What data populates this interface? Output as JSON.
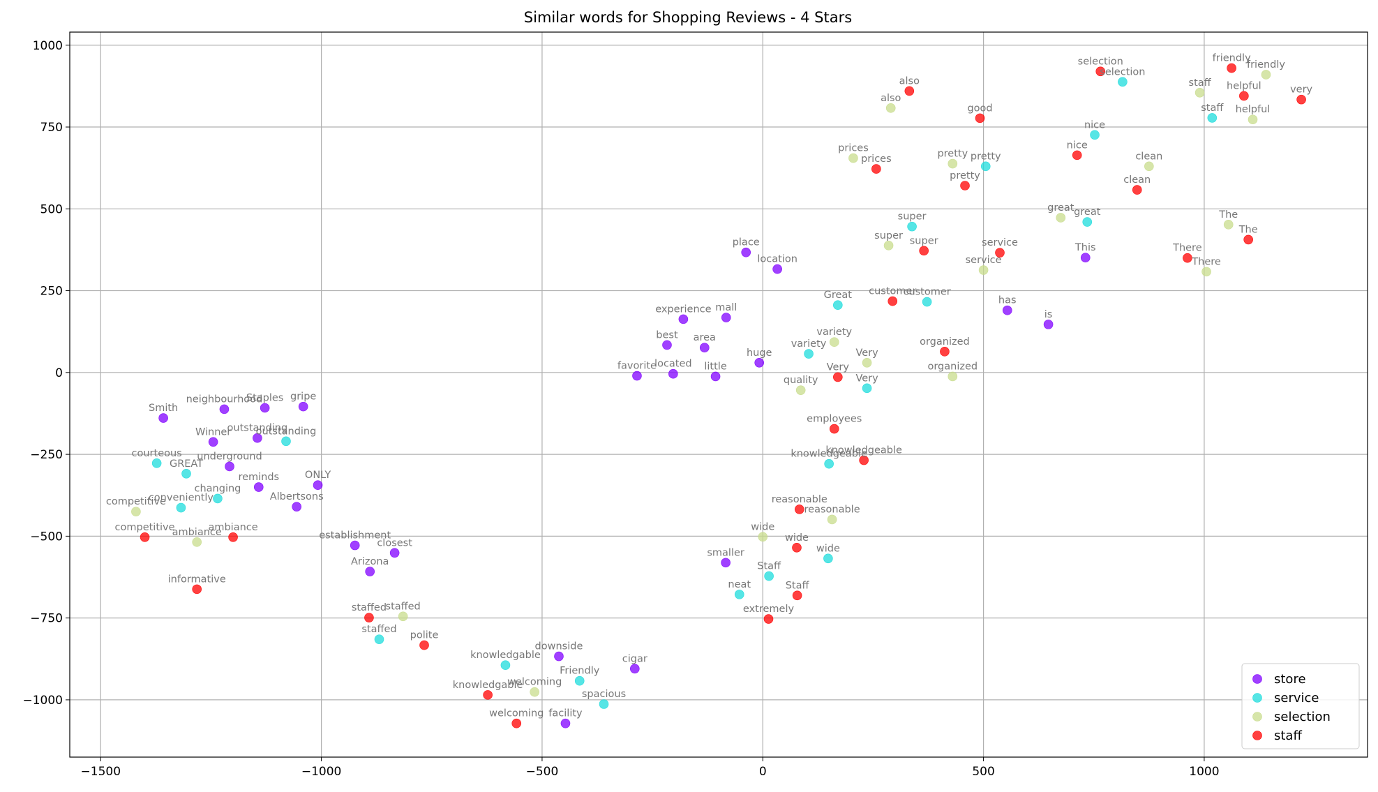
{
  "chart_data": {
    "type": "scatter",
    "title": "Similar words for Shopping Reviews - 4 Stars",
    "xlabel": "",
    "ylabel": "",
    "xlim": [
      -1570,
      1370
    ],
    "ylim": [
      -1175,
      1040
    ],
    "xticks": [
      -1500,
      -1000,
      -500,
      0,
      500,
      1000
    ],
    "yticks": [
      -1000,
      -750,
      -500,
      -250,
      0,
      250,
      500,
      750,
      1000
    ],
    "tick_labels_x": [
      "−1500",
      "−1000",
      "−500",
      "0",
      "500",
      "1000"
    ],
    "tick_labels_y": [
      "−1000",
      "−750",
      "−500",
      "−250",
      "0",
      "250",
      "500",
      "750",
      "1000"
    ],
    "grid": true,
    "legend_position": "lower-right",
    "series": [
      {
        "name": "store",
        "color": "#8000ff",
        "points": [
          {
            "label": "place",
            "x": -38,
            "y": 367
          },
          {
            "label": "location",
            "x": 33,
            "y": 316
          },
          {
            "label": "experience",
            "x": -180,
            "y": 163
          },
          {
            "label": "mall",
            "x": -83,
            "y": 168
          },
          {
            "label": "best",
            "x": -217,
            "y": 84
          },
          {
            "label": "area",
            "x": -132,
            "y": 76
          },
          {
            "label": "huge",
            "x": -8,
            "y": 30
          },
          {
            "label": "favorite",
            "x": -285,
            "y": -10
          },
          {
            "label": "located",
            "x": -203,
            "y": -4
          },
          {
            "label": "little",
            "x": -107,
            "y": -12
          },
          {
            "label": "has",
            "x": 554,
            "y": 190
          },
          {
            "label": "is",
            "x": 647,
            "y": 147
          },
          {
            "label": "This",
            "x": 731,
            "y": 351
          },
          {
            "label": "neighbourhood",
            "x": -1220,
            "y": -112
          },
          {
            "label": "Staples",
            "x": -1128,
            "y": -108
          },
          {
            "label": "gripe",
            "x": -1041,
            "y": -104
          },
          {
            "label": "Smith",
            "x": -1358,
            "y": -139
          },
          {
            "label": "Winner",
            "x": -1245,
            "y": -212
          },
          {
            "label": "outstanding",
            "x": -1145,
            "y": -200
          },
          {
            "label": "underground",
            "x": -1208,
            "y": -287
          },
          {
            "label": "reminds",
            "x": -1142,
            "y": -350
          },
          {
            "label": "ONLY",
            "x": -1008,
            "y": -344
          },
          {
            "label": "Albertsons",
            "x": -1056,
            "y": -410
          },
          {
            "label": "establishment",
            "x": -924,
            "y": -528
          },
          {
            "label": "closest",
            "x": -834,
            "y": -551
          },
          {
            "label": "Arizona",
            "x": -890,
            "y": -608
          },
          {
            "label": "smaller",
            "x": -84,
            "y": -581
          },
          {
            "label": "downside",
            "x": -462,
            "y": -867
          },
          {
            "label": "cigar",
            "x": -290,
            "y": -905
          },
          {
            "label": "facility",
            "x": -447,
            "y": -1072
          }
        ]
      },
      {
        "name": "service",
        "color": "#1edcdc",
        "points": [
          {
            "label": "selection",
            "x": 815,
            "y": 888
          },
          {
            "label": "staff",
            "x": 1018,
            "y": 778
          },
          {
            "label": "nice",
            "x": 752,
            "y": 726
          },
          {
            "label": "pretty",
            "x": 505,
            "y": 630
          },
          {
            "label": "super",
            "x": 338,
            "y": 446
          },
          {
            "label": "great",
            "x": 735,
            "y": 460
          },
          {
            "label": "Great",
            "x": 170,
            "y": 206
          },
          {
            "label": "customer",
            "x": 372,
            "y": 216
          },
          {
            "label": "variety",
            "x": 104,
            "y": 57
          },
          {
            "label": "Very",
            "x": 236,
            "y": -48
          },
          {
            "label": "knowledgeable",
            "x": 150,
            "y": -279
          },
          {
            "label": "wide",
            "x": 148,
            "y": -568
          },
          {
            "label": "Staff",
            "x": 14,
            "y": -622
          },
          {
            "label": "neat",
            "x": -53,
            "y": -678
          },
          {
            "label": "courteous",
            "x": -1373,
            "y": -277
          },
          {
            "label": "outstanding",
            "x": -1080,
            "y": -210
          },
          {
            "label": "GREAT",
            "x": -1306,
            "y": -309
          },
          {
            "label": "changing",
            "x": -1235,
            "y": -385
          },
          {
            "label": "conveniently",
            "x": -1318,
            "y": -413
          },
          {
            "label": "staffed",
            "x": -869,
            "y": -815
          },
          {
            "label": "knowledgable",
            "x": -583,
            "y": -894
          },
          {
            "label": "Friendly",
            "x": -415,
            "y": -942
          },
          {
            "label": "spacious",
            "x": -360,
            "y": -1013
          }
        ]
      },
      {
        "name": "selection",
        "color": "#c8dc8c",
        "points": [
          {
            "label": "friendly",
            "x": 1140,
            "y": 910
          },
          {
            "label": "staff",
            "x": 990,
            "y": 855
          },
          {
            "label": "helpful",
            "x": 1110,
            "y": 773
          },
          {
            "label": "also",
            "x": 290,
            "y": 808
          },
          {
            "label": "prices",
            "x": 205,
            "y": 655
          },
          {
            "label": "pretty",
            "x": 430,
            "y": 638
          },
          {
            "label": "clean",
            "x": 875,
            "y": 630
          },
          {
            "label": "great",
            "x": 675,
            "y": 473
          },
          {
            "label": "The",
            "x": 1055,
            "y": 452
          },
          {
            "label": "super",
            "x": 285,
            "y": 388
          },
          {
            "label": "service",
            "x": 500,
            "y": 313
          },
          {
            "label": "There",
            "x": 1005,
            "y": 308
          },
          {
            "label": "variety",
            "x": 162,
            "y": 93
          },
          {
            "label": "Very",
            "x": 236,
            "y": 30
          },
          {
            "label": "organized",
            "x": 430,
            "y": -12
          },
          {
            "label": "quality",
            "x": 86,
            "y": -54
          },
          {
            "label": "reasonable",
            "x": 157,
            "y": -449
          },
          {
            "label": "wide",
            "x": 0,
            "y": -502
          },
          {
            "label": "competitive",
            "x": -1420,
            "y": -425
          },
          {
            "label": "ambiance",
            "x": -1282,
            "y": -518
          },
          {
            "label": "staffed",
            "x": -815,
            "y": -745
          },
          {
            "label": "welcoming",
            "x": -517,
            "y": -976
          }
        ]
      },
      {
        "name": "staff",
        "color": "#ff0000",
        "points": [
          {
            "label": "selection",
            "x": 765,
            "y": 920
          },
          {
            "label": "friendly",
            "x": 1062,
            "y": 930
          },
          {
            "label": "helpful",
            "x": 1090,
            "y": 845
          },
          {
            "label": "very",
            "x": 1220,
            "y": 834
          },
          {
            "label": "also",
            "x": 332,
            "y": 860
          },
          {
            "label": "good",
            "x": 492,
            "y": 777
          },
          {
            "label": "nice",
            "x": 712,
            "y": 664
          },
          {
            "label": "prices",
            "x": 257,
            "y": 622
          },
          {
            "label": "pretty",
            "x": 458,
            "y": 571
          },
          {
            "label": "clean",
            "x": 848,
            "y": 558
          },
          {
            "label": "service",
            "x": 537,
            "y": 366
          },
          {
            "label": "super",
            "x": 365,
            "y": 372
          },
          {
            "label": "There",
            "x": 962,
            "y": 350
          },
          {
            "label": "The",
            "x": 1100,
            "y": 406
          },
          {
            "label": "customer",
            "x": 294,
            "y": 218
          },
          {
            "label": "organized",
            "x": 412,
            "y": 64
          },
          {
            "label": "Very",
            "x": 170,
            "y": -14
          },
          {
            "label": "employees",
            "x": 162,
            "y": -172
          },
          {
            "label": "knowledgeable",
            "x": 229,
            "y": -268
          },
          {
            "label": "reasonable",
            "x": 83,
            "y": -418
          },
          {
            "label": "wide",
            "x": 77,
            "y": -535
          },
          {
            "label": "Staff",
            "x": 78,
            "y": -681
          },
          {
            "label": "extremely",
            "x": 13,
            "y": -753
          },
          {
            "label": "competitive",
            "x": -1400,
            "y": -503
          },
          {
            "label": "ambiance",
            "x": -1200,
            "y": -503
          },
          {
            "label": "informative",
            "x": -1282,
            "y": -662
          },
          {
            "label": "staffed",
            "x": -892,
            "y": -749
          },
          {
            "label": "polite",
            "x": -767,
            "y": -833
          },
          {
            "label": "knowledgable",
            "x": -623,
            "y": -985
          },
          {
            "label": "welcoming",
            "x": -558,
            "y": -1072
          }
        ]
      }
    ]
  }
}
